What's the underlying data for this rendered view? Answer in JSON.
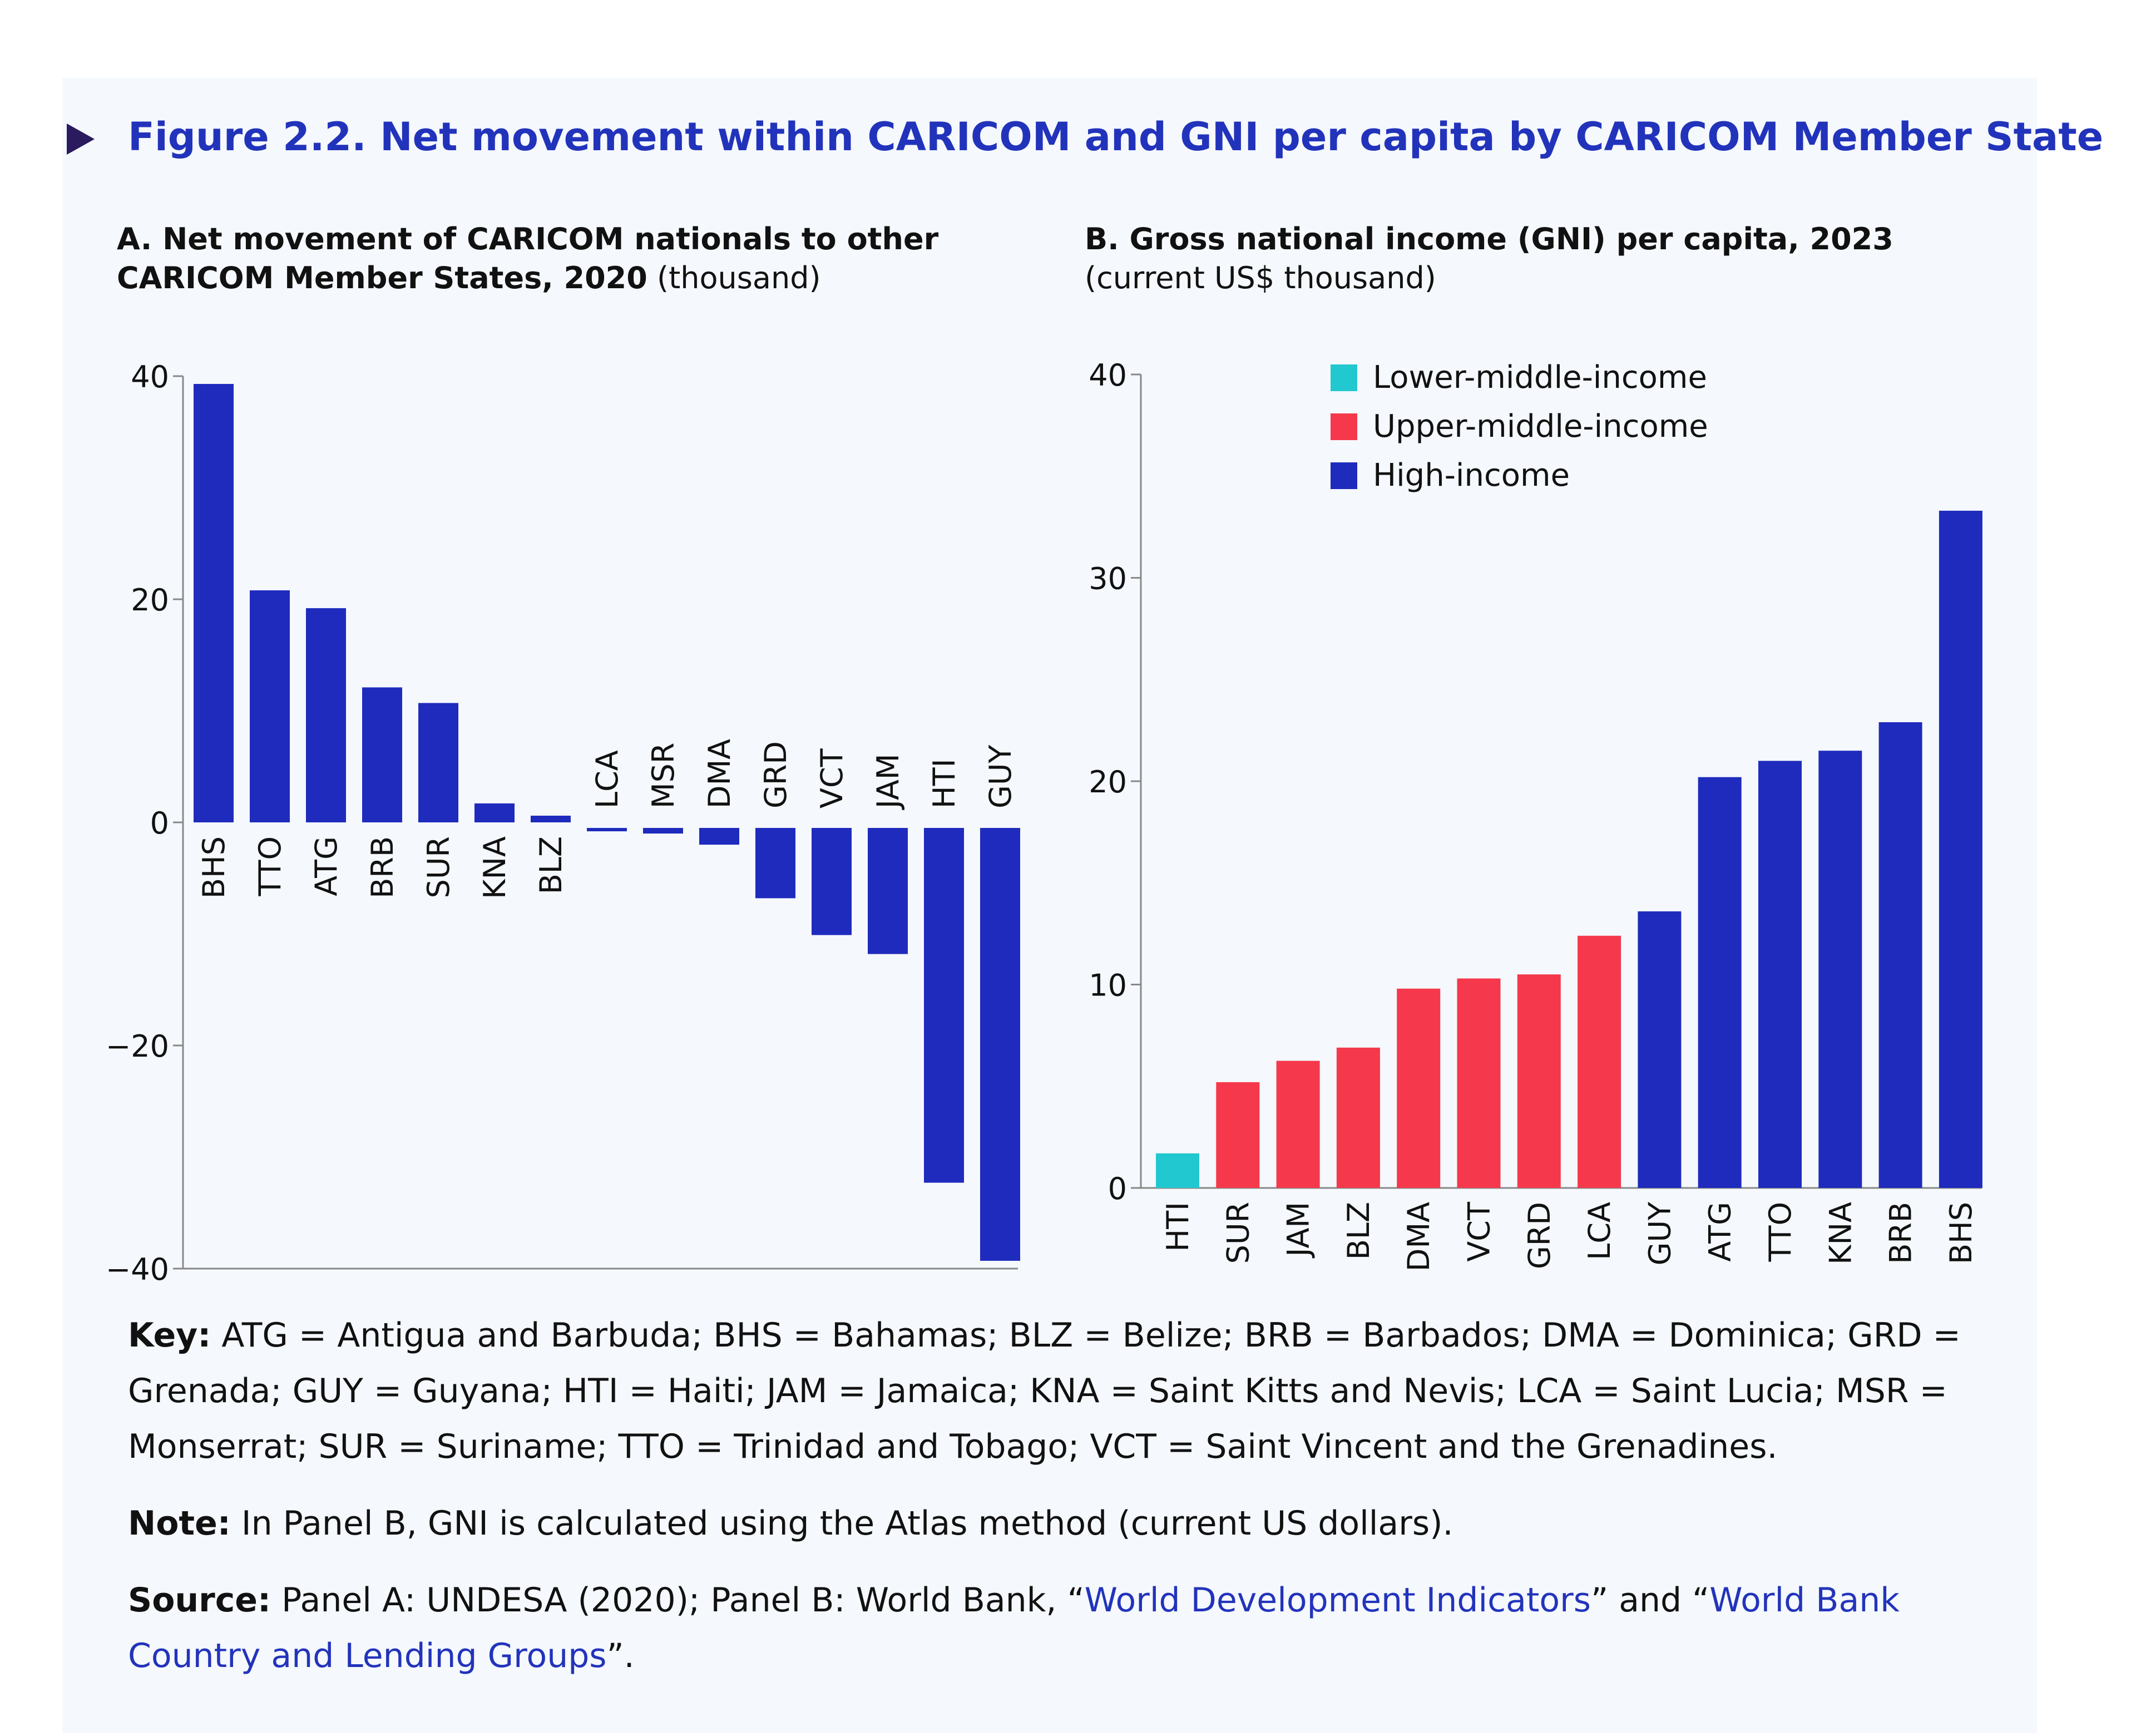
{
  "title": "Figure 2.2. Net movement within CARICOM and GNI per capita by CARICOM Member State",
  "panel_a": {
    "subtitle_bold_1": "A. Net movement of CARICOM nationals to other",
    "subtitle_bold_2": "CARICOM Member States, 2020",
    "subtitle_unit": "(thousand)"
  },
  "panel_b": {
    "subtitle_bold": "B. Gross national income (GNI) per capita, 2023",
    "subtitle_unit": "(current US$ thousand)"
  },
  "chart_data": [
    {
      "type": "bar",
      "title": "A. Net movement of CARICOM nationals to other CARICOM Member States, 2020 (thousand)",
      "categories": [
        "BHS",
        "TTO",
        "ATG",
        "BRB",
        "SUR",
        "KNA",
        "BLZ",
        "LCA",
        "MSR",
        "DMA",
        "GRD",
        "VCT",
        "JAM",
        "HTI",
        "GUY"
      ],
      "values": [
        39.3,
        20.8,
        19.2,
        12.1,
        10.7,
        1.7,
        0.6,
        -0.8,
        -1.0,
        -2.0,
        -6.8,
        -10.1,
        -11.8,
        -32.3,
        -39.3
      ],
      "ylim": [
        -40,
        40
      ],
      "yticks": [
        "40",
        "20",
        "0",
        "−20",
        "−40"
      ],
      "ytick_values": [
        40,
        20,
        0,
        -20,
        -40
      ],
      "color": "#1f2bbd",
      "grid": false
    },
    {
      "type": "bar",
      "title": "B. Gross national income (GNI) per capita, 2023 (current US$ thousand)",
      "categories": [
        "HTI",
        "SUR",
        "JAM",
        "BLZ",
        "DMA",
        "VCT",
        "GRD",
        "LCA",
        "GUY",
        "ATG",
        "TTO",
        "KNA",
        "BRB",
        "BHS"
      ],
      "values": [
        1.7,
        5.2,
        6.25,
        6.9,
        9.8,
        10.3,
        10.5,
        12.4,
        13.6,
        20.2,
        21.0,
        21.5,
        22.9,
        33.3
      ],
      "groups": [
        0,
        1,
        1,
        1,
        1,
        1,
        1,
        1,
        2,
        2,
        2,
        2,
        2,
        2
      ],
      "ylim": [
        0,
        40
      ],
      "yticks": [
        "40",
        "30",
        "20",
        "10",
        "0"
      ],
      "ytick_values": [
        40,
        30,
        20,
        10,
        0
      ],
      "legend": [
        {
          "name": "Lower-middle-income",
          "color": "#22c8d0"
        },
        {
          "name": "Upper-middle-income",
          "color": "#f5384b"
        },
        {
          "name": "High-income",
          "color": "#1f2bbd"
        }
      ],
      "legend_position": "top-left",
      "grid": false
    }
  ],
  "notes": {
    "key_label": "Key:",
    "key_text": " ATG = Antigua and Barbuda; BHS = Bahamas; BLZ = Belize; BRB = Barbados; DMA = Dominica; GRD = Grenada; GUY = Guyana; HTI = Haiti; JAM = Jamaica; KNA = Saint Kitts and Nevis; LCA = Saint Lucia; MSR = Monserrat; SUR = Suriname; TTO = Trinidad and Tobago; VCT = Saint Vincent and the Grenadines.",
    "note_label": "Note:",
    "note_text": " In Panel B, GNI is calculated using the Atlas method (current US dollars).",
    "source_label": "Source:",
    "source_text_1": " Panel A: UNDESA (2020); Panel B: World Bank, “",
    "source_link_1": "World Development Indicators",
    "source_text_2": "” and “",
    "source_link_2": "World Bank Country and Lending Groups",
    "source_text_3": "”."
  }
}
